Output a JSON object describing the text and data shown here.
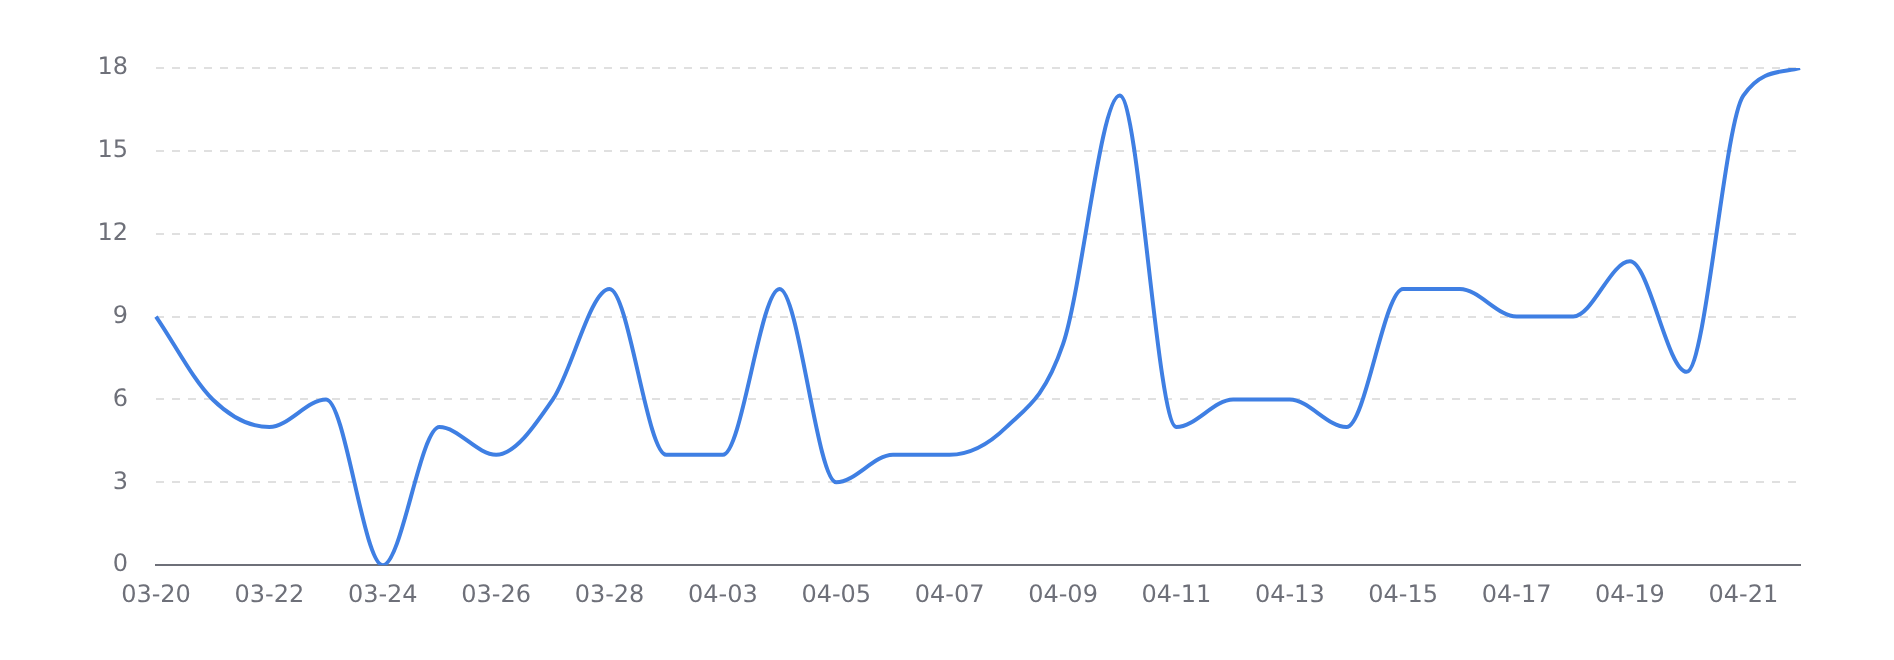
{
  "chart_data": {
    "type": "line",
    "categories": [
      "03-20",
      null,
      "03-22",
      null,
      "03-24",
      null,
      "03-26",
      null,
      "03-28",
      null,
      "04-03",
      null,
      "04-05",
      null,
      "04-07",
      null,
      "04-09",
      null,
      "04-11",
      null,
      "04-13",
      null,
      "04-15",
      null,
      "04-17",
      null,
      "04-19",
      null,
      "04-21",
      null
    ],
    "series": [
      {
        "color": "#3f7fe3",
        "values": [
          9,
          6,
          5,
          6,
          0,
          5,
          4,
          6,
          10,
          4,
          4,
          10,
          3,
          4,
          4,
          5,
          8,
          17,
          5,
          6,
          6,
          5,
          10,
          10,
          9,
          9,
          11,
          7,
          17,
          18
        ]
      }
    ],
    "ylim": [
      0,
      18
    ],
    "yticks": [
      0,
      3,
      6,
      9,
      12,
      15,
      18
    ],
    "grid": "y",
    "legend": false,
    "marker": "none",
    "line_style": "solid"
  }
}
